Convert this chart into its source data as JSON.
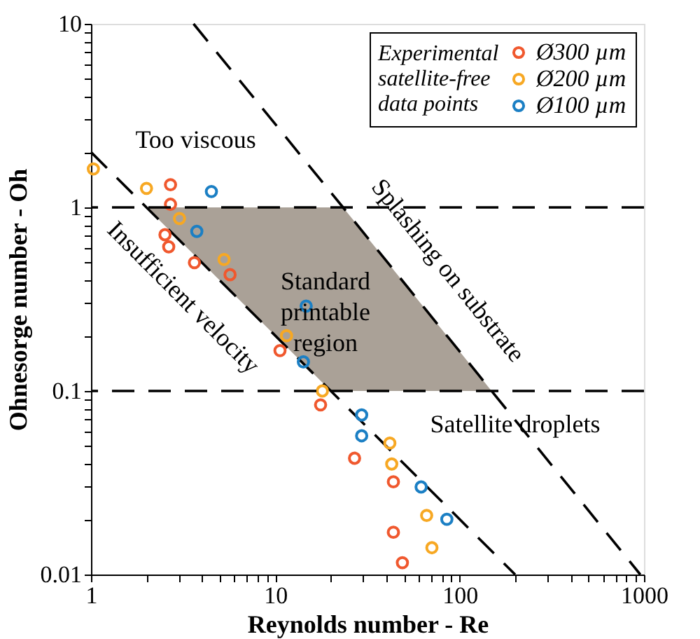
{
  "chart_data": {
    "type": "scatter",
    "xlabel": "Reynolds number - Re",
    "ylabel": "Ohnesorge number - Oh",
    "legend_title": "Experimental satellite-free data points",
    "legend": "top right",
    "log": "xy",
    "grid": false,
    "marker": "circle",
    "line_style": "dashed",
    "xlim": [
      1,
      1000
    ],
    "ylim": [
      0.01,
      10
    ],
    "xticks": [
      1,
      {
        "value": 2,
        "label": null
      },
      {
        "value": 3,
        "label": null
      },
      {
        "value": 4,
        "label": null
      },
      {
        "value": 5,
        "label": null
      },
      {
        "value": 6,
        "label": null
      },
      {
        "value": 7,
        "label": null
      },
      {
        "value": 8,
        "label": null
      },
      {
        "value": 9,
        "label": null
      },
      10,
      {
        "value": 20,
        "label": null
      },
      {
        "value": 30,
        "label": null
      },
      {
        "value": 40,
        "label": null
      },
      {
        "value": 50,
        "label": null
      },
      {
        "value": 60,
        "label": null
      },
      {
        "value": 70,
        "label": null
      },
      {
        "value": 80,
        "label": null
      },
      {
        "value": 90,
        "label": null
      },
      100,
      {
        "value": 200,
        "label": null
      },
      {
        "value": 300,
        "label": null
      },
      {
        "value": 400,
        "label": null
      },
      {
        "value": 500,
        "label": null
      },
      {
        "value": 600,
        "label": null
      },
      {
        "value": 700,
        "label": null
      },
      {
        "value": 800,
        "label": null
      },
      {
        "value": 900,
        "label": null
      },
      1000
    ],
    "yticks": [
      0.01,
      {
        "value": 0.02,
        "label": null
      },
      {
        "value": 0.03,
        "label": null
      },
      {
        "value": 0.04,
        "label": null
      },
      {
        "value": 0.05,
        "label": null
      },
      {
        "value": 0.06,
        "label": null
      },
      {
        "value": 0.07,
        "label": null
      },
      {
        "value": 0.08,
        "label": null
      },
      {
        "value": 0.09,
        "label": null
      },
      0.1,
      {
        "value": 0.2,
        "label": null
      },
      {
        "value": 0.3,
        "label": null
      },
      {
        "value": 0.4,
        "label": null
      },
      {
        "value": 0.5,
        "label": null
      },
      {
        "value": 0.6,
        "label": null
      },
      {
        "value": 0.7,
        "label": null
      },
      {
        "value": 0.8,
        "label": null
      },
      {
        "value": 0.9,
        "label": null
      },
      1,
      {
        "value": 2,
        "label": null
      },
      {
        "value": 3,
        "label": null
      },
      {
        "value": 4,
        "label": null
      },
      {
        "value": 5,
        "label": null
      },
      {
        "value": 6,
        "label": null
      },
      {
        "value": 7,
        "label": null
      },
      {
        "value": 8,
        "label": null
      },
      {
        "value": 9,
        "label": null
      },
      10
    ],
    "series": [
      {
        "type": "area",
        "marker": "none",
        "color": "#aaa197",
        "x": [
          2,
          23.3,
          149,
          20
        ],
        "values": [
          1,
          1,
          0.1,
          0.1
        ]
      },
      {
        "type": "line",
        "marker": "none",
        "color": "#000000",
        "x": [
          1,
          200
        ],
        "values": [
          2,
          0.01
        ]
      },
      {
        "type": "line",
        "marker": "none",
        "color": "#000000",
        "x": [
          3.6,
          23.3,
          149,
          955
        ],
        "values": [
          10,
          1,
          0.1,
          0.01
        ]
      },
      {
        "name": "Ø300 µm",
        "color": "#f0582e",
        "x": [
          2.7,
          2.7,
          2.52,
          2.64,
          3.64,
          5.68,
          10.6,
          17.6,
          26.9,
          43.7,
          43.7,
          48.9
        ],
        "values": [
          1.33,
          1.04,
          0.71,
          0.61,
          0.5,
          0.43,
          0.166,
          0.084,
          0.043,
          0.032,
          0.017,
          0.0116
        ]
      },
      {
        "name": "Ø200 µm",
        "color": "#f7a823",
        "x": [
          1.03,
          2.0,
          3.02,
          5.27,
          11.5,
          18.0,
          41.8,
          42.8,
          66.2,
          70.7
        ],
        "values": [
          1.62,
          1.27,
          0.87,
          0.52,
          0.2,
          0.1,
          0.052,
          0.04,
          0.021,
          0.014
        ]
      },
      {
        "name": "Ø100 µm",
        "color": "#1b7fc4",
        "x": [
          4.5,
          3.75,
          14.7,
          14.2,
          29.4,
          29.4,
          61.8,
          85.2
        ],
        "values": [
          1.22,
          0.74,
          0.29,
          0.144,
          0.074,
          0.057,
          0.03,
          0.02
        ]
      }
    ],
    "ref_lines": [
      {
        "axis": "y",
        "value": 1,
        "color": "#000000",
        "line_style": "dashed"
      },
      {
        "axis": "y",
        "value": 0.1,
        "color": "#000000",
        "line_style": "dashed"
      }
    ],
    "annotations": [
      "Too viscous",
      "Insufficient velocity",
      "Standard printable region",
      "Splashing on substrate",
      "Satellite droplets"
    ]
  }
}
